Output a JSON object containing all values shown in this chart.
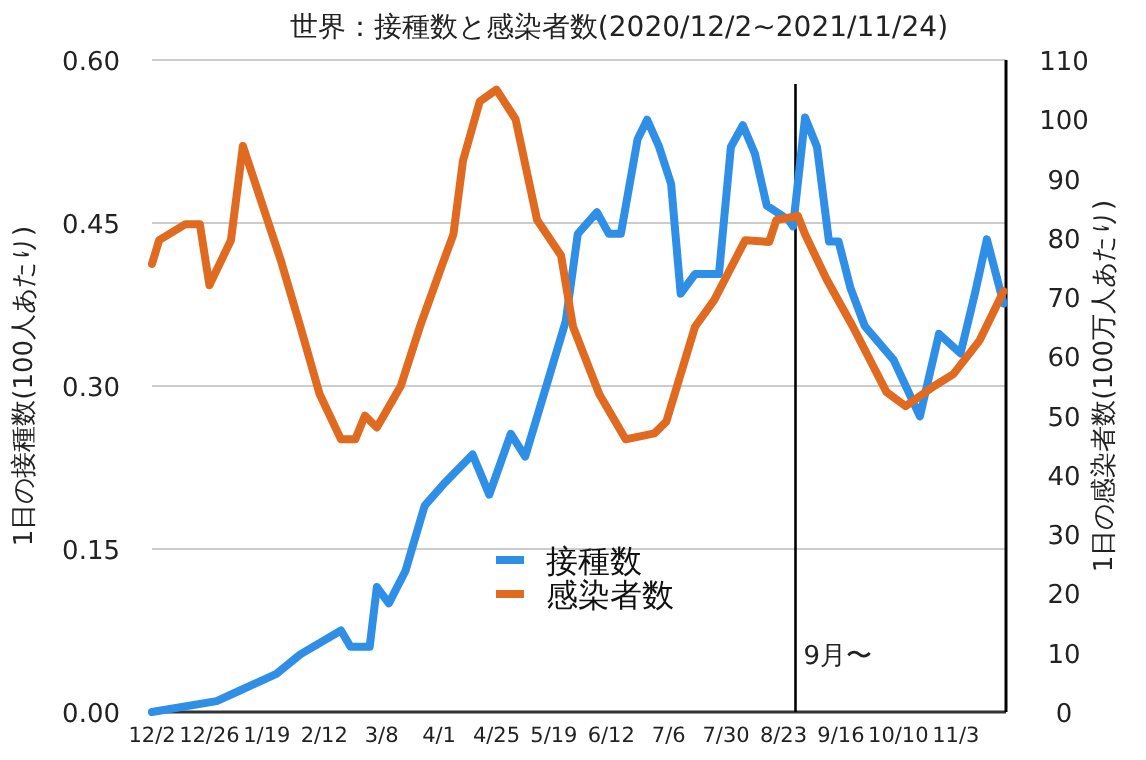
{
  "chart_data": {
    "type": "line",
    "title": "世界：接種数と感染者数(2020/12/2~2021/11/24)",
    "ylabel": "1日の接種数(100人あたり)",
    "y2label": "1日の感染者数(100万人あたり)",
    "xlim": [
      "2020-12-02",
      "2021-11-24"
    ],
    "xticks": [
      {
        "value": "2020-12-02",
        "label": "12/2"
      },
      {
        "value": "2020-12-26",
        "label": "12/26"
      },
      {
        "value": "2021-01-19",
        "label": "1/19"
      },
      {
        "value": "2021-02-12",
        "label": "2/12"
      },
      {
        "value": "2021-03-08",
        "label": "3/8"
      },
      {
        "value": "2021-04-01",
        "label": "4/1"
      },
      {
        "value": "2021-04-25",
        "label": "4/25"
      },
      {
        "value": "2021-05-19",
        "label": "5/19"
      },
      {
        "value": "2021-06-12",
        "label": "6/12"
      },
      {
        "value": "2021-07-06",
        "label": "7/6"
      },
      {
        "value": "2021-07-30",
        "label": "7/30"
      },
      {
        "value": "2021-08-23",
        "label": "8/23"
      },
      {
        "value": "2021-09-16",
        "label": "9/16"
      },
      {
        "value": "2021-10-10",
        "label": "10/10"
      },
      {
        "value": "2021-11-03",
        "label": "11/3"
      }
    ],
    "ylim": [
      0,
      0.6
    ],
    "yticks": [
      {
        "value": 0,
        "label": "0.00"
      },
      {
        "value": 0.15,
        "label": "0.15"
      },
      {
        "value": 0.3,
        "label": "0.30"
      },
      {
        "value": 0.45,
        "label": "0.45"
      },
      {
        "value": 0.6,
        "label": "0.60"
      }
    ],
    "y2lim": [
      0,
      110
    ],
    "y2ticks": [
      0,
      10,
      20,
      30,
      40,
      50,
      60,
      70,
      80,
      90,
      100,
      110
    ],
    "grid": "y",
    "legend": "bottom",
    "ref_lines": [
      {
        "axis": "x",
        "value": "2021-08-28",
        "label": "9月〜",
        "color": "#000000"
      }
    ],
    "series": [
      {
        "name": "接種数",
        "color": "#2f8ee5",
        "x": [
          "2020-12-02",
          "2020-12-29",
          "2021-01-08",
          "2021-01-23",
          "2021-02-02",
          "2021-02-19",
          "2021-02-23",
          "2021-03-03",
          "2021-03-06",
          "2021-03-11",
          "2021-03-18",
          "2021-03-26",
          "2021-04-03",
          "2021-04-15",
          "2021-04-22",
          "2021-05-01",
          "2021-05-07",
          "2021-05-24",
          "2021-05-29",
          "2021-06-06",
          "2021-06-11",
          "2021-06-16",
          "2021-06-23",
          "2021-06-27",
          "2021-07-02",
          "2021-07-07",
          "2021-07-11",
          "2021-07-17",
          "2021-07-27",
          "2021-08-01",
          "2021-08-06",
          "2021-08-11",
          "2021-08-16",
          "2021-08-25",
          "2021-08-27",
          "2021-09-01",
          "2021-09-06",
          "2021-09-11",
          "2021-09-15",
          "2021-09-20",
          "2021-09-26",
          "2021-10-08",
          "2021-10-19",
          "2021-10-27",
          "2021-11-05",
          "2021-11-11",
          "2021-11-16",
          "2021-11-23"
        ],
        "values": [
          0,
          0.01,
          0.02,
          0.035,
          0.053,
          0.075,
          0.06,
          0.06,
          0.115,
          0.1,
          0.13,
          0.19,
          0.21,
          0.237,
          0.2,
          0.256,
          0.235,
          0.36,
          0.44,
          0.46,
          0.44,
          0.44,
          0.527,
          0.545,
          0.52,
          0.486,
          0.385,
          0.403,
          0.403,
          0.52,
          0.54,
          0.514,
          0.466,
          0.453,
          0.447,
          0.547,
          0.52,
          0.433,
          0.433,
          0.39,
          0.355,
          0.324,
          0.272,
          0.348,
          0.33,
          0.385,
          0.435,
          0.376
        ]
      },
      {
        "name": "感染者数",
        "color": "#e06a1f",
        "axis": "y2",
        "x": [
          "2020-12-02",
          "2020-12-05",
          "2020-12-16",
          "2020-12-22",
          "2020-12-26",
          "2021-01-04",
          "2021-01-09",
          "2021-01-25",
          "2021-02-02",
          "2021-02-10",
          "2021-02-19",
          "2021-02-25",
          "2021-03-01",
          "2021-03-06",
          "2021-03-16",
          "2021-03-24",
          "2021-04-01",
          "2021-04-07",
          "2021-04-11",
          "2021-04-18",
          "2021-04-25",
          "2021-05-03",
          "2021-05-12",
          "2021-05-22",
          "2021-05-27",
          "2021-06-07",
          "2021-06-18",
          "2021-06-30",
          "2021-07-05",
          "2021-07-17",
          "2021-07-25",
          "2021-08-07",
          "2021-08-17",
          "2021-08-20",
          "2021-08-29",
          "2021-09-01",
          "2021-09-10",
          "2021-09-21",
          "2021-10-05",
          "2021-10-13",
          "2021-10-25",
          "2021-11-02",
          "2021-11-13",
          "2021-11-23"
        ],
        "values": [
          75.6,
          79.6,
          82.3,
          82.3,
          72,
          79.6,
          95.5,
          76,
          65,
          53.7,
          46,
          46,
          50,
          48,
          55,
          65,
          74,
          80.6,
          93,
          103,
          105,
          100,
          83,
          77,
          65,
          53.6,
          46,
          47,
          49,
          65,
          69.5,
          79.6,
          79.3,
          83,
          83.7,
          80.6,
          73,
          65,
          54,
          51.6,
          55,
          57,
          62.7,
          71
        ]
      }
    ]
  }
}
